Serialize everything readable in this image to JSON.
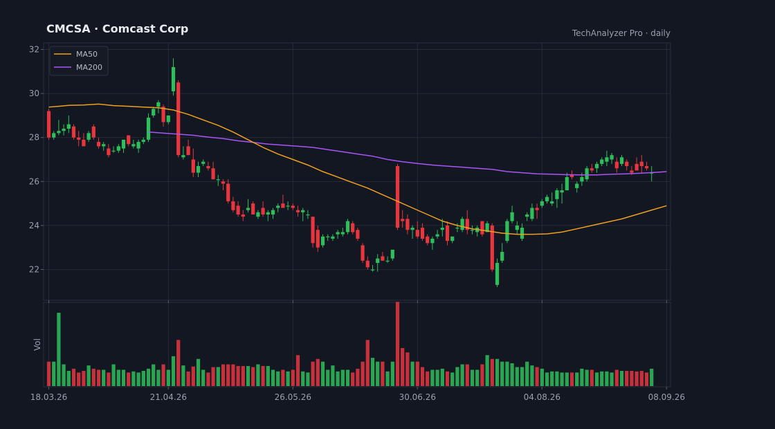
{
  "header": {
    "title": "CMCSA  ·  Comcast Corp",
    "source": "TechAnalyzer Pro · daily"
  },
  "colors": {
    "background": "#131722",
    "up": "#2fbf5a",
    "down": "#e8363f",
    "ma50": "#f0a020",
    "ma200": "#a855f7",
    "grid": "#2a2f3c"
  },
  "chart_data": {
    "type": "candlestick",
    "price_axis": {
      "ylim": [
        20.6,
        32.3
      ],
      "ticks": [
        "22",
        "24",
        "26",
        "28",
        "30",
        "32"
      ],
      "tick_values": [
        22,
        24,
        26,
        28,
        30,
        32
      ]
    },
    "volume_axis": {
      "label": "Vol"
    },
    "x_tick_labels": [
      "18.03.26",
      "21.04.26",
      "26.05.26",
      "30.06.26",
      "04.08.26",
      "08.09.26"
    ],
    "x_tick_index": [
      0,
      24,
      49,
      74,
      99,
      124
    ],
    "legend": {
      "placement": "top-left",
      "entries": [
        "MA50",
        "MA200"
      ]
    },
    "grid": true,
    "candles": [
      [
        29.2,
        29.3,
        27.9,
        28.0,
        0.45
      ],
      [
        28.0,
        28.3,
        27.9,
        28.2,
        0.45
      ],
      [
        28.2,
        28.8,
        28.1,
        28.3,
        1.35
      ],
      [
        28.3,
        28.6,
        28.1,
        28.4,
        0.4
      ],
      [
        28.4,
        29.0,
        28.2,
        28.6,
        0.28
      ],
      [
        28.5,
        28.6,
        27.9,
        28.0,
        0.32
      ],
      [
        28.0,
        28.3,
        27.6,
        27.9,
        0.25
      ],
      [
        27.9,
        28.2,
        27.7,
        27.6,
        0.28
      ],
      [
        27.9,
        28.3,
        27.8,
        28.2,
        0.38
      ],
      [
        28.5,
        28.6,
        27.9,
        28.0,
        0.32
      ],
      [
        27.8,
        28.0,
        27.5,
        27.6,
        0.3
      ],
      [
        27.6,
        27.8,
        27.4,
        27.7,
        0.3
      ],
      [
        27.5,
        27.7,
        27.1,
        27.2,
        0.25
      ],
      [
        27.4,
        27.6,
        27.3,
        27.4,
        0.4
      ],
      [
        27.4,
        27.7,
        27.3,
        27.6,
        0.3
      ],
      [
        27.5,
        27.9,
        27.3,
        27.9,
        0.3
      ],
      [
        28.1,
        28.1,
        27.6,
        27.7,
        0.25
      ],
      [
        27.6,
        27.9,
        27.5,
        27.7,
        0.27
      ],
      [
        27.5,
        27.9,
        27.3,
        27.8,
        0.25
      ],
      [
        27.8,
        28.0,
        27.7,
        27.9,
        0.28
      ],
      [
        27.9,
        29.1,
        27.8,
        28.9,
        0.32
      ],
      [
        29.0,
        29.4,
        28.9,
        29.3,
        0.4
      ],
      [
        29.4,
        29.7,
        29.1,
        29.6,
        0.3
      ],
      [
        29.4,
        29.5,
        28.5,
        28.7,
        0.4
      ],
      [
        28.7,
        29.0,
        28.6,
        29.0,
        0.3
      ],
      [
        30.1,
        31.6,
        29.9,
        31.2,
        0.55
      ],
      [
        30.5,
        30.6,
        27.1,
        27.2,
        0.85
      ],
      [
        27.1,
        27.6,
        27.0,
        27.2,
        0.38
      ],
      [
        27.6,
        27.9,
        27.2,
        27.2,
        0.27
      ],
      [
        27.0,
        27.5,
        26.2,
        26.4,
        0.36
      ],
      [
        26.4,
        26.9,
        26.2,
        26.7,
        0.5
      ],
      [
        26.8,
        27.0,
        26.7,
        26.9,
        0.3
      ],
      [
        26.7,
        26.9,
        26.5,
        26.6,
        0.25
      ],
      [
        26.6,
        26.9,
        26.1,
        26.1,
        0.35
      ],
      [
        26.1,
        26.3,
        25.8,
        26.1,
        0.35
      ],
      [
        26.0,
        26.1,
        25.6,
        25.9,
        0.4
      ],
      [
        25.9,
        26.1,
        25.0,
        25.1,
        0.4
      ],
      [
        25.1,
        25.3,
        24.6,
        24.7,
        0.4
      ],
      [
        24.9,
        25.1,
        24.4,
        24.5,
        0.37
      ],
      [
        24.5,
        24.7,
        24.2,
        24.4,
        0.37
      ],
      [
        24.7,
        25.2,
        24.6,
        24.8,
        0.37
      ],
      [
        25.0,
        25.1,
        24.5,
        24.5,
        0.35
      ],
      [
        24.4,
        24.7,
        24.3,
        24.6,
        0.4
      ],
      [
        24.8,
        25.1,
        24.4,
        24.5,
        0.37
      ],
      [
        24.5,
        24.7,
        24.2,
        24.6,
        0.37
      ],
      [
        24.5,
        24.8,
        24.3,
        24.7,
        0.3
      ],
      [
        24.8,
        25.0,
        24.6,
        24.9,
        0.27
      ],
      [
        25.0,
        25.4,
        24.8,
        24.8,
        0.3
      ],
      [
        24.9,
        25.1,
        24.7,
        24.9,
        0.27
      ],
      [
        24.9,
        25.0,
        24.7,
        24.8,
        0.3
      ],
      [
        24.7,
        24.9,
        24.4,
        24.6,
        0.57
      ],
      [
        24.6,
        24.8,
        24.2,
        24.7,
        0.27
      ],
      [
        24.5,
        24.7,
        24.3,
        24.5,
        0.25
      ],
      [
        24.4,
        24.4,
        23.0,
        23.2,
        0.45
      ],
      [
        23.8,
        24.0,
        22.8,
        23.0,
        0.5
      ],
      [
        23.1,
        23.6,
        23.0,
        23.5,
        0.45
      ],
      [
        23.5,
        23.6,
        23.3,
        23.5,
        0.3
      ],
      [
        23.4,
        23.6,
        23.3,
        23.5,
        0.38
      ],
      [
        23.6,
        23.8,
        23.4,
        23.7,
        0.27
      ],
      [
        23.6,
        23.9,
        23.5,
        23.7,
        0.3
      ],
      [
        23.7,
        24.3,
        23.6,
        24.2,
        0.3
      ],
      [
        24.1,
        24.2,
        23.6,
        23.7,
        0.25
      ],
      [
        23.8,
        23.9,
        23.3,
        23.4,
        0.32
      ],
      [
        23.1,
        23.2,
        22.3,
        22.4,
        0.45
      ],
      [
        22.4,
        22.6,
        22.0,
        22.1,
        0.85
      ],
      [
        22.0,
        22.2,
        21.9,
        22.0,
        0.52
      ],
      [
        22.3,
        22.7,
        21.9,
        22.5,
        0.45
      ],
      [
        22.6,
        22.8,
        22.4,
        22.4,
        0.45
      ],
      [
        22.4,
        22.6,
        22.3,
        22.4,
        0.27
      ],
      [
        22.5,
        22.9,
        22.4,
        22.9,
        0.45
      ],
      [
        26.7,
        26.8,
        23.8,
        23.9,
        1.55
      ],
      [
        24.3,
        24.7,
        23.9,
        24.2,
        0.7
      ],
      [
        24.3,
        24.5,
        23.6,
        23.8,
        0.62
      ],
      [
        23.8,
        24.0,
        23.4,
        23.9,
        0.45
      ],
      [
        23.8,
        24.2,
        23.4,
        23.5,
        0.45
      ],
      [
        23.9,
        24.1,
        23.3,
        23.4,
        0.35
      ],
      [
        23.5,
        23.6,
        23.1,
        23.2,
        0.27
      ],
      [
        23.2,
        23.5,
        22.9,
        23.4,
        0.3
      ],
      [
        23.5,
        23.8,
        23.4,
        23.6,
        0.3
      ],
      [
        23.8,
        24.3,
        23.5,
        23.9,
        0.32
      ],
      [
        24.0,
        24.2,
        23.1,
        23.3,
        0.27
      ],
      [
        23.3,
        23.5,
        23.2,
        23.5,
        0.25
      ],
      [
        23.9,
        24.1,
        23.7,
        23.9,
        0.35
      ],
      [
        23.8,
        24.4,
        23.7,
        24.3,
        0.4
      ],
      [
        24.3,
        24.7,
        23.6,
        23.8,
        0.4
      ],
      [
        23.8,
        24.0,
        23.6,
        23.8,
        0.3
      ],
      [
        23.7,
        24.0,
        23.5,
        23.9,
        0.3
      ],
      [
        24.2,
        24.2,
        23.5,
        23.6,
        0.4
      ],
      [
        23.7,
        24.2,
        23.7,
        24.1,
        0.57
      ],
      [
        24.0,
        24.1,
        21.9,
        22.0,
        0.5
      ],
      [
        21.3,
        22.5,
        21.2,
        22.3,
        0.5
      ],
      [
        22.4,
        23.2,
        22.3,
        22.8,
        0.45
      ],
      [
        23.3,
        24.3,
        23.2,
        24.2,
        0.45
      ],
      [
        24.2,
        24.9,
        24.1,
        24.6,
        0.42
      ],
      [
        23.8,
        24.2,
        23.6,
        24.0,
        0.35
      ],
      [
        23.4,
        24.1,
        23.3,
        23.9,
        0.35
      ],
      [
        24.4,
        24.6,
        24.2,
        24.5,
        0.45
      ],
      [
        24.3,
        25.0,
        24.2,
        24.8,
        0.38
      ],
      [
        24.8,
        25.0,
        24.3,
        24.7,
        0.35
      ],
      [
        24.9,
        25.2,
        24.8,
        25.1,
        0.32
      ],
      [
        25.1,
        25.4,
        25.0,
        25.3,
        0.25
      ],
      [
        25.0,
        25.5,
        24.9,
        25.1,
        0.27
      ],
      [
        25.2,
        25.7,
        24.8,
        25.6,
        0.27
      ],
      [
        25.5,
        25.9,
        25.0,
        25.6,
        0.25
      ],
      [
        25.6,
        26.4,
        25.6,
        26.2,
        0.25
      ],
      [
        26.3,
        26.5,
        26.1,
        26.2,
        0.25
      ],
      [
        25.7,
        26.0,
        25.5,
        25.9,
        0.25
      ],
      [
        26.0,
        26.4,
        25.8,
        26.2,
        0.32
      ],
      [
        26.1,
        26.7,
        26.0,
        26.6,
        0.3
      ],
      [
        26.6,
        26.8,
        26.4,
        26.5,
        0.3
      ],
      [
        26.6,
        26.9,
        26.4,
        26.8,
        0.25
      ],
      [
        26.8,
        27.1,
        26.7,
        27.0,
        0.27
      ],
      [
        26.9,
        27.4,
        26.7,
        27.1,
        0.27
      ],
      [
        27.0,
        27.3,
        26.8,
        27.2,
        0.25
      ],
      [
        26.9,
        27.1,
        26.4,
        26.6,
        0.3
      ],
      [
        26.8,
        27.2,
        26.7,
        27.1,
        0.28
      ],
      [
        26.9,
        27.0,
        26.5,
        26.7,
        0.28
      ],
      [
        26.5,
        26.7,
        26.3,
        26.4,
        0.28
      ],
      [
        26.8,
        27.1,
        26.5,
        26.5,
        0.27
      ],
      [
        26.9,
        27.2,
        26.4,
        26.7,
        0.28
      ],
      [
        26.7,
        26.9,
        26.5,
        26.6,
        0.25
      ],
      [
        26.4,
        26.7,
        26.0,
        26.4,
        0.32
      ]
    ],
    "ma50": [
      [
        0,
        29.38
      ],
      [
        2,
        29.42
      ],
      [
        4,
        29.46
      ],
      [
        7,
        29.48
      ],
      [
        10,
        29.52
      ],
      [
        13,
        29.45
      ],
      [
        16,
        29.42
      ],
      [
        19,
        29.38
      ],
      [
        22,
        29.35
      ],
      [
        25,
        29.25
      ],
      [
        28,
        29.05
      ],
      [
        31,
        28.8
      ],
      [
        34,
        28.55
      ],
      [
        37,
        28.25
      ],
      [
        40,
        27.9
      ],
      [
        43,
        27.55
      ],
      [
        46,
        27.25
      ],
      [
        49,
        27.0
      ],
      [
        52,
        26.75
      ],
      [
        55,
        26.45
      ],
      [
        58,
        26.2
      ],
      [
        61,
        25.95
      ],
      [
        64,
        25.7
      ],
      [
        67,
        25.4
      ],
      [
        70,
        25.1
      ],
      [
        73,
        24.8
      ],
      [
        76,
        24.5
      ],
      [
        79,
        24.2
      ],
      [
        82,
        24.0
      ],
      [
        85,
        23.85
      ],
      [
        88,
        23.75
      ],
      [
        91,
        23.65
      ],
      [
        94,
        23.6
      ],
      [
        97,
        23.6
      ],
      [
        100,
        23.62
      ],
      [
        103,
        23.7
      ],
      [
        106,
        23.85
      ],
      [
        109,
        24.0
      ],
      [
        112,
        24.15
      ],
      [
        115,
        24.3
      ],
      [
        118,
        24.5
      ],
      [
        121,
        24.7
      ],
      [
        124,
        24.9
      ]
    ],
    "ma200": [
      [
        20,
        28.25
      ],
      [
        23,
        28.2
      ],
      [
        26,
        28.15
      ],
      [
        29,
        28.1
      ],
      [
        32,
        28.02
      ],
      [
        35,
        27.95
      ],
      [
        38,
        27.85
      ],
      [
        41,
        27.78
      ],
      [
        44,
        27.7
      ],
      [
        47,
        27.65
      ],
      [
        50,
        27.6
      ],
      [
        53,
        27.55
      ],
      [
        56,
        27.45
      ],
      [
        59,
        27.35
      ],
      [
        62,
        27.25
      ],
      [
        65,
        27.15
      ],
      [
        68,
        27.0
      ],
      [
        71,
        26.9
      ],
      [
        74,
        26.82
      ],
      [
        77,
        26.75
      ],
      [
        80,
        26.7
      ],
      [
        83,
        26.65
      ],
      [
        86,
        26.6
      ],
      [
        89,
        26.55
      ],
      [
        92,
        26.45
      ],
      [
        95,
        26.4
      ],
      [
        98,
        26.35
      ],
      [
        101,
        26.33
      ],
      [
        104,
        26.31
      ],
      [
        107,
        26.3
      ],
      [
        110,
        26.3
      ],
      [
        113,
        26.33
      ],
      [
        116,
        26.35
      ],
      [
        119,
        26.38
      ],
      [
        122,
        26.42
      ],
      [
        124,
        26.45
      ]
    ]
  }
}
